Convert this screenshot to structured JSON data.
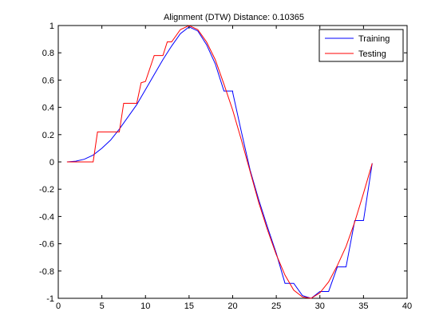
{
  "chart_data": {
    "type": "line",
    "title": "Alignment (DTW) Distance:  0.10365",
    "xlabel": "",
    "ylabel": "",
    "xlim": [
      0,
      40
    ],
    "ylim": [
      -1,
      1
    ],
    "xticks": [
      0,
      5,
      10,
      15,
      20,
      25,
      30,
      35,
      40
    ],
    "yticks": [
      -1,
      -0.8,
      -0.6,
      -0.4,
      -0.2,
      0,
      0.2,
      0.4,
      0.6,
      0.8,
      1
    ],
    "grid": false,
    "legend": "top-right",
    "series": [
      {
        "name": "Training",
        "color": "#0000ff",
        "x": [
          1,
          2,
          3,
          4,
          5,
          6,
          7,
          8,
          9,
          10,
          11,
          12,
          13,
          14,
          15,
          16,
          17,
          18,
          19,
          20,
          20,
          21,
          22,
          22,
          23,
          24,
          25,
          26,
          26,
          27,
          28,
          29,
          30,
          30,
          31,
          32,
          33,
          34,
          35,
          36
        ],
        "y": [
          0,
          0.005,
          0.02,
          0.05,
          0.1,
          0.16,
          0.24,
          0.33,
          0.42,
          0.53,
          0.64,
          0.75,
          0.85,
          0.94,
          0.99,
          0.96,
          0.86,
          0.72,
          0.52,
          0.52,
          0.51,
          0.22,
          -0.06,
          -0.06,
          -0.28,
          -0.48,
          -0.67,
          -0.89,
          -0.89,
          -0.89,
          -0.98,
          -1.0,
          -0.95,
          -0.95,
          -0.95,
          -0.77,
          -0.77,
          -0.43,
          -0.43,
          -0.01
        ]
      },
      {
        "name": "Testing",
        "color": "#ff0000",
        "x": [
          1,
          2,
          3,
          4,
          4.5,
          5,
          6,
          7,
          7.5,
          8,
          9,
          9.5,
          10,
          11,
          12,
          12.5,
          13,
          14,
          15,
          16,
          17,
          18,
          19,
          20,
          21,
          22,
          23,
          24,
          25,
          26,
          27,
          28,
          29,
          30,
          31,
          32,
          33,
          34,
          35,
          36
        ],
        "y": [
          0,
          0,
          0,
          0,
          0.22,
          0.22,
          0.22,
          0.22,
          0.43,
          0.43,
          0.43,
          0.58,
          0.59,
          0.78,
          0.78,
          0.88,
          0.88,
          0.97,
          1.0,
          0.97,
          0.88,
          0.75,
          0.57,
          0.38,
          0.16,
          -0.07,
          -0.3,
          -0.5,
          -0.68,
          -0.83,
          -0.94,
          -0.99,
          -1.0,
          -0.96,
          -0.88,
          -0.76,
          -0.62,
          -0.44,
          -0.23,
          -0.01
        ]
      }
    ]
  }
}
